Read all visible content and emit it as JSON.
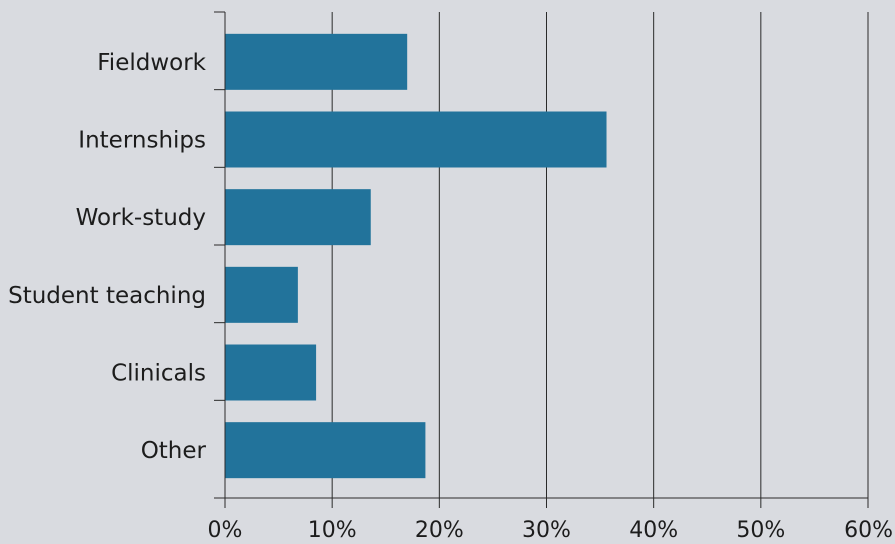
{
  "chart_data": {
    "type": "bar",
    "orientation": "horizontal",
    "categories": [
      "Fieldwork",
      "Internships",
      "Work-study",
      "Student teaching",
      "Clinicals",
      "Other"
    ],
    "values": [
      17,
      35.6,
      13.6,
      6.8,
      8.5,
      18.7
    ],
    "xlim": [
      0,
      60
    ],
    "x_ticks": [
      0,
      10,
      20,
      30,
      40,
      50,
      60
    ],
    "x_tick_labels": [
      "0%",
      "10%",
      "20%",
      "30%",
      "40%",
      "50%",
      "60%"
    ],
    "grid": true,
    "colors": {
      "bar": "#22739b",
      "grid": "#2a2a2a",
      "background": "#d9dbe0"
    }
  }
}
